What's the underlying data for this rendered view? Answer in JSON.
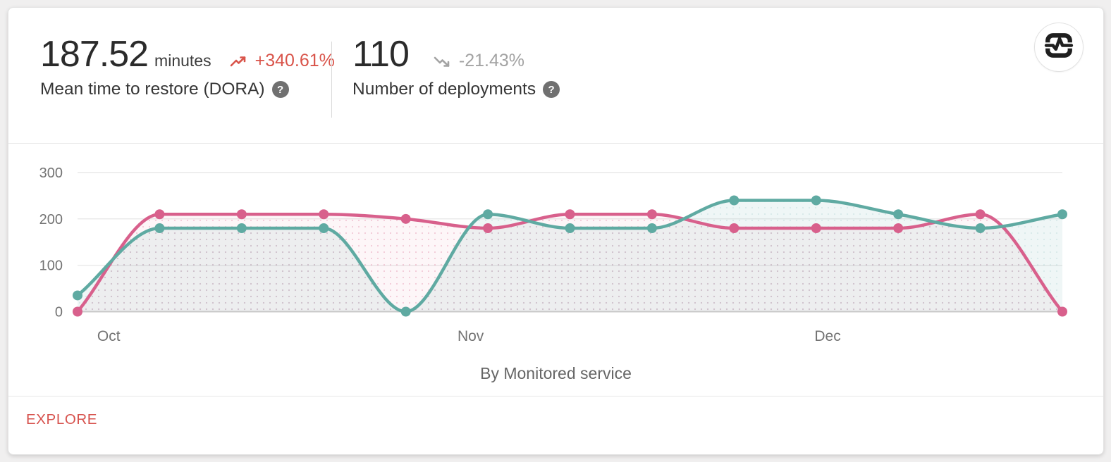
{
  "page": {
    "background": "#f0efef"
  },
  "card": {
    "header": {
      "metrics": [
        {
          "value": "187.52",
          "unit": "minutes",
          "trend_value": "+340.61%",
          "trend_direction": "up",
          "trend_color": "#d9544a",
          "label": "Mean time to restore (DORA)",
          "help_icon": "?"
        },
        {
          "value": "110",
          "unit": "",
          "trend_value": "-21.43%",
          "trend_direction": "down",
          "trend_color": "#a3a3a3",
          "label": "Number of deployments",
          "help_icon": "?"
        }
      ],
      "action_icon": "pulse-monitor"
    },
    "caption": "By Monitored service",
    "footer": {
      "explore_label": "EXPLORE",
      "explore_color": "#d7534e"
    }
  },
  "chart_data": {
    "type": "line",
    "title": "",
    "xlabel": "",
    "ylabel": "",
    "x_axis": {
      "labels": [
        "Oct",
        "Nov",
        "Dec"
      ],
      "label_point_positions": [
        0.38,
        4.79,
        9.14
      ]
    },
    "y_axis": {
      "ticks": [
        0,
        100,
        200,
        300
      ],
      "range": [
        0,
        300
      ]
    },
    "grid": true,
    "legend_position": "none",
    "smooth": true,
    "point_count": 13,
    "series": [
      {
        "name": "mean-time-to-restore",
        "color": "#d8608c",
        "fill": "rgba(216,96,140,0.06)",
        "dot_fill": "rgba(216,96,140,0.30)",
        "values": [
          0,
          210,
          210,
          210,
          200,
          180,
          210,
          210,
          180,
          180,
          180,
          210,
          0
        ]
      },
      {
        "name": "number-of-deployments",
        "color": "#5faaa2",
        "fill": "rgba(95,170,162,0.10)",
        "dot_fill": "rgba(95,170,162,0.16)",
        "values": [
          35,
          180,
          180,
          180,
          0,
          210,
          180,
          180,
          240,
          240,
          210,
          180,
          210
        ]
      }
    ]
  }
}
